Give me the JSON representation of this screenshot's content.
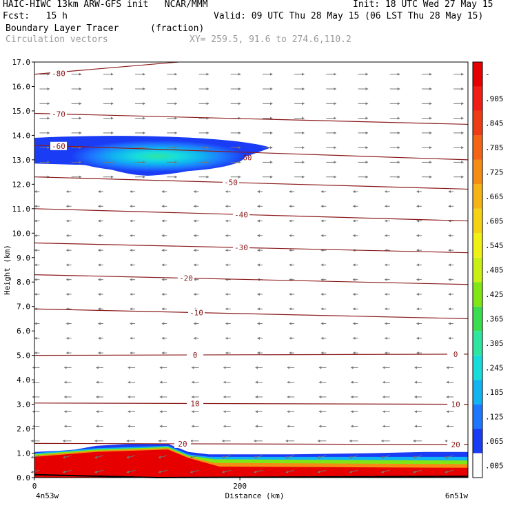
{
  "header": {
    "line1_left": "HAIC-HIWC 13km ARW-GFS init   NCAR/MMM",
    "line1_right": "Init: 18 UTC Wed 27 May 15",
    "line2_left": "Fcst:   15 h",
    "line2_right": "Valid: 09 UTC Thu 28 May 15 (06 LST Thu 28 May 15)",
    "line3_left": "Boundary Layer Tracer",
    "line3_unit": "(fraction)",
    "line4_left": "Circulation vectors",
    "line4_xy": "XY= 259.5, 91.6 to 274.6,110.2"
  },
  "chart_data": {
    "type": "heatmap",
    "title": "Boundary Layer Tracer",
    "units": "(fraction)",
    "overlay": "Circulation vectors",
    "xlabel": "Distance (km)",
    "ylabel": "Height (km)",
    "xlim": [
      0,
      422
    ],
    "ylim": [
      0,
      17
    ],
    "x_ticks": [
      0,
      200
    ],
    "x_end_labels": [
      "4n53w",
      "6n51w"
    ],
    "y_ticks": [
      "0.0",
      "1.0",
      "2.0",
      "3.0",
      "4.0",
      "5.0",
      "6.0",
      "7.0",
      "8.0",
      "9.0",
      "10.0",
      "11.0",
      "12.0",
      "13.0",
      "14.0",
      "15.0",
      "16.0",
      "17.0"
    ],
    "colorbar": {
      "labels": [
        ".005",
        ".065",
        ".125",
        ".185",
        ".245",
        ".305",
        ".365",
        ".425",
        ".485",
        ".545",
        ".605",
        ".665",
        ".725",
        ".785",
        ".845",
        ".905",
        "-"
      ],
      "colors": [
        "#ffffff",
        "#1a3cf5",
        "#1e78ff",
        "#10b4f0",
        "#18dcdc",
        "#2ee6a0",
        "#3cdc50",
        "#82e614",
        "#c8f014",
        "#f0f014",
        "#f5d214",
        "#f5b414",
        "#f58c14",
        "#f56414",
        "#f03c14",
        "#f01e14",
        "#e60000"
      ]
    },
    "temperature_contours": [
      {
        "label": "-80",
        "y_left": 16.5,
        "y_right": 17.1
      },
      {
        "label": "-70",
        "y_left": 14.9,
        "y_right": 14.45
      },
      {
        "label": "-60",
        "y_left": 13.6,
        "y_right": 13.0
      },
      {
        "label": "-50",
        "y_left": 12.3,
        "y_right": 11.8
      },
      {
        "label": "-40",
        "y_left": 11.0,
        "y_right": 10.5
      },
      {
        "label": "-30",
        "y_left": 9.6,
        "y_right": 9.2
      },
      {
        "label": "-20",
        "y_left": 8.3,
        "y_right": 7.9
      },
      {
        "label": "-10",
        "y_left": 6.9,
        "y_right": 6.5
      },
      {
        "label": "0",
        "y_left": 5.0,
        "y_right": 5.05
      },
      {
        "label": "10",
        "y_left": 3.05,
        "y_right": 3.0
      },
      {
        "label": "20",
        "y_left": 1.4,
        "y_right": 1.35
      }
    ],
    "tracer_regions": [
      {
        "name": "upper-layer",
        "x": [
          0,
          230
        ],
        "y": [
          12.4,
          13.9
        ],
        "max": 0.3
      },
      {
        "name": "boundary-layer",
        "x": [
          0,
          422
        ],
        "y": [
          0,
          1.4
        ],
        "max": 1.0
      }
    ]
  }
}
